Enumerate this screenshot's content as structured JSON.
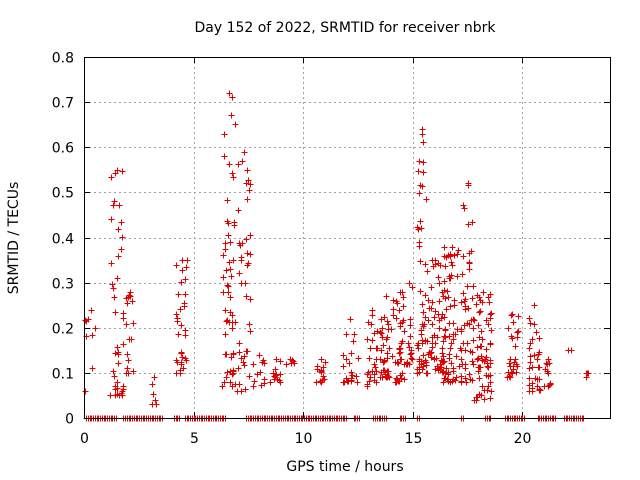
{
  "chart_data": {
    "type": "scatter",
    "title": "Day 152 of 2022, SRMTID for receiver nbrk",
    "xlabel": "GPS time / hours",
    "ylabel": "SRMTID / TECUs",
    "xlim": [
      0,
      24
    ],
    "ylim": [
      0,
      0.8
    ],
    "xticks": [
      0,
      5,
      10,
      15,
      20
    ],
    "xtick_labels": [
      "0",
      "5",
      "10",
      "15",
      "20"
    ],
    "yticks": [
      0,
      0.1,
      0.2,
      0.3,
      0.4,
      0.5,
      0.6,
      0.7,
      0.8
    ],
    "ytick_labels": [
      "0",
      "0.1",
      "0.2",
      "0.3",
      "0.4",
      "0.5",
      "0.6",
      "0.7",
      "0.8"
    ],
    "grid": true,
    "marker": "+",
    "marker_color": "#e00000",
    "series": [
      {
        "name": "SRMTID",
        "clusters": [
          {
            "x": [
              0.05,
              0.6
            ],
            "y": [
              0.06,
              0.24
            ],
            "n": 8
          },
          {
            "x": [
              1.2,
              1.8
            ],
            "y": [
              0.05,
              0.55
            ],
            "n": 40
          },
          {
            "x": [
              1.9,
              2.3
            ],
            "y": [
              0.1,
              0.28
            ],
            "n": 15
          },
          {
            "x": [
              3.1,
              3.3
            ],
            "y": [
              0.03,
              0.09
            ],
            "n": 4
          },
          {
            "x": [
              4.2,
              4.7
            ],
            "y": [
              0.1,
              0.35
            ],
            "n": 30
          },
          {
            "x": [
              6.3,
              6.9
            ],
            "y": [
              0.07,
              0.72
            ],
            "n": 55
          },
          {
            "x": [
              7.0,
              7.6
            ],
            "y": [
              0.06,
              0.59
            ],
            "n": 40
          },
          {
            "x": [
              7.7,
              8.3
            ],
            "y": [
              0.07,
              0.14
            ],
            "n": 10
          },
          {
            "x": [
              8.5,
              9.0
            ],
            "y": [
              0.08,
              0.13
            ],
            "n": 12
          },
          {
            "x": [
              9.2,
              9.6
            ],
            "y": [
              0.12,
              0.13
            ],
            "n": 4
          },
          {
            "x": [
              10.6,
              11.0
            ],
            "y": [
              0.08,
              0.13
            ],
            "n": 12
          },
          {
            "x": [
              11.8,
              12.5
            ],
            "y": [
              0.08,
              0.22
            ],
            "n": 20
          },
          {
            "x": [
              12.9,
              13.4
            ],
            "y": [
              0.07,
              0.24
            ],
            "n": 25
          },
          {
            "x": [
              13.5,
              14.1
            ],
            "y": [
              0.09,
              0.27
            ],
            "n": 40
          },
          {
            "x": [
              14.2,
              14.6
            ],
            "y": [
              0.08,
              0.28
            ],
            "n": 35
          },
          {
            "x": [
              14.7,
              15.0
            ],
            "y": [
              0.12,
              0.3
            ],
            "n": 15
          },
          {
            "x": [
              15.2,
              15.6
            ],
            "y": [
              0.1,
              0.64
            ],
            "n": 50
          },
          {
            "x": [
              15.6,
              16.4
            ],
            "y": [
              0.1,
              0.35
            ],
            "n": 60
          },
          {
            "x": [
              16.4,
              17.2
            ],
            "y": [
              0.08,
              0.38
            ],
            "n": 70
          },
          {
            "x": [
              17.2,
              17.8
            ],
            "y": [
              0.08,
              0.52
            ],
            "n": 50
          },
          {
            "x": [
              17.8,
              18.6
            ],
            "y": [
              0.04,
              0.28
            ],
            "n": 60
          },
          {
            "x": [
              19.3,
              19.8
            ],
            "y": [
              0.09,
              0.23
            ],
            "n": 25
          },
          {
            "x": [
              20.3,
              20.8
            ],
            "y": [
              0.06,
              0.25
            ],
            "n": 30
          },
          {
            "x": [
              21.0,
              21.3
            ],
            "y": [
              0.07,
              0.13
            ],
            "n": 10
          },
          {
            "x": [
              22.1,
              22.3
            ],
            "y": [
              0.15,
              0.15
            ],
            "n": 1
          },
          {
            "x": [
              22.9,
              23.0
            ],
            "y": [
              0.09,
              0.1
            ],
            "n": 2
          }
        ],
        "zero_ranges": [
          [
            0.1,
            1.5
          ],
          [
            1.8,
            3.6
          ],
          [
            4.1,
            4.4
          ],
          [
            4.6,
            6.5
          ],
          [
            7.4,
            12.0
          ],
          [
            12.3,
            12.6
          ],
          [
            13.2,
            13.8
          ],
          [
            14.4,
            14.7
          ],
          [
            15.2,
            15.3
          ],
          [
            17.2,
            17.3
          ],
          [
            18.3,
            18.6
          ],
          [
            19.2,
            20.1
          ],
          [
            20.7,
            21.5
          ],
          [
            21.9,
            22.8
          ]
        ]
      }
    ]
  }
}
